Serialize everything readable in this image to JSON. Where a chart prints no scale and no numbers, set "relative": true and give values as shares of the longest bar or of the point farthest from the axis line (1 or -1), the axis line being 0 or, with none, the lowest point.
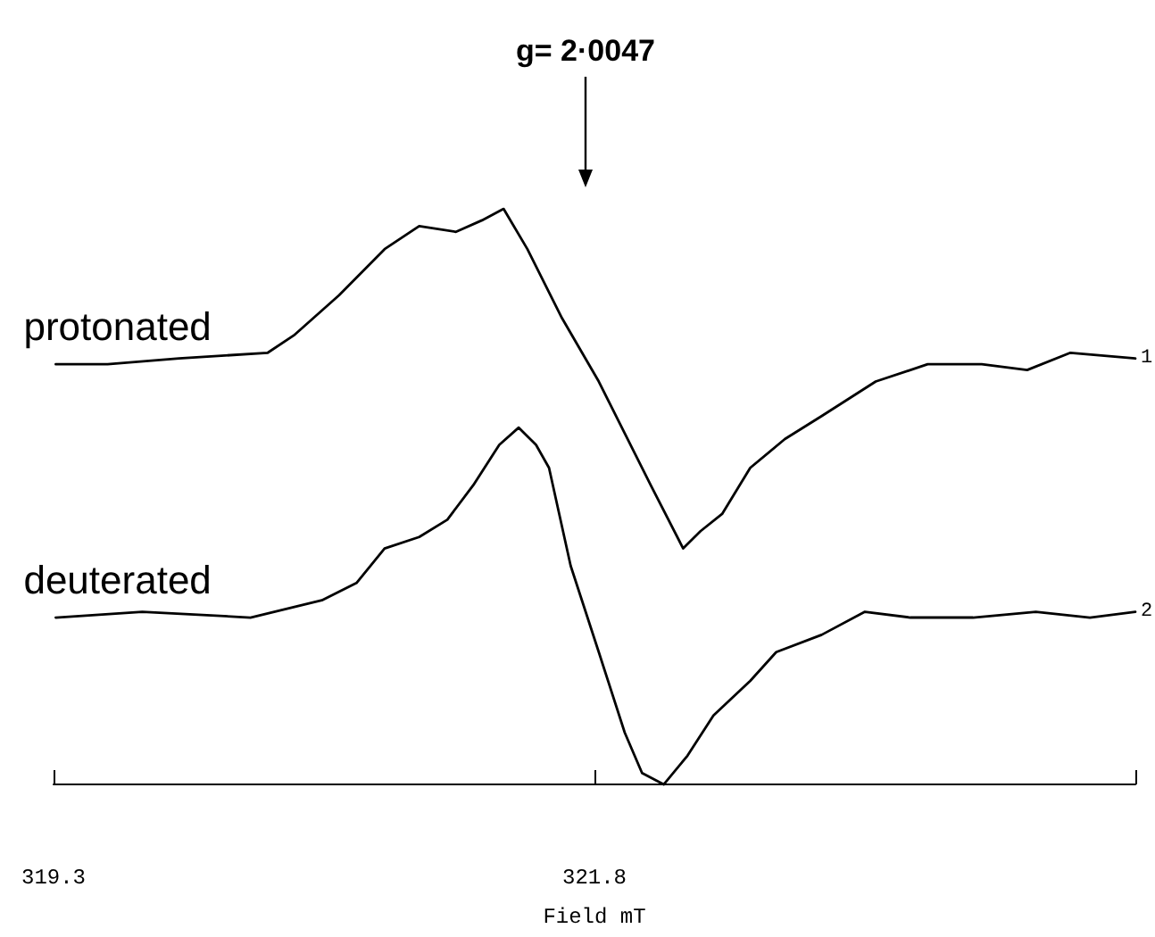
{
  "chart_data": {
    "type": "line",
    "relative": true,
    "xlabel": "Field mT",
    "xlim": [
      319.3,
      324.3
    ],
    "xticks": [
      319.3,
      321.8,
      {
        "value": 324.3,
        "label": null
      }
    ],
    "grid": false,
    "legend": false,
    "marker": "none",
    "line_style": "solid",
    "annotations": [
      "g= 2·0047",
      "1",
      "2"
    ],
    "series": [
      {
        "name": "protonated",
        "color": "#000000",
        "x": [
          319.31,
          319.55,
          319.88,
          320.29,
          320.41,
          320.62,
          320.83,
          320.99,
          321.16,
          321.28,
          321.38,
          321.49,
          321.65,
          321.82,
          321.94,
          322.06,
          322.21,
          322.29,
          322.39,
          322.52,
          322.68,
          322.85,
          323.1,
          323.34,
          323.59,
          323.8,
          324.0,
          324.3
        ],
        "values": [
          0.73,
          0.73,
          0.74,
          0.75,
          0.78,
          0.85,
          0.93,
          0.97,
          0.96,
          0.98,
          1.0,
          0.93,
          0.81,
          0.7,
          0.61,
          0.52,
          0.41,
          0.44,
          0.47,
          0.55,
          0.6,
          0.64,
          0.7,
          0.73,
          0.73,
          0.72,
          0.75,
          0.74
        ]
      },
      {
        "name": "deuterated",
        "color": "#000000",
        "x": [
          319.31,
          319.71,
          320.21,
          320.54,
          320.7,
          320.83,
          320.99,
          321.12,
          321.24,
          321.36,
          321.45,
          321.53,
          321.59,
          321.69,
          321.82,
          321.94,
          322.02,
          322.12,
          322.23,
          322.35,
          322.52,
          322.64,
          322.85,
          323.05,
          323.26,
          323.55,
          323.84,
          324.09,
          324.3
        ],
        "values": [
          0.29,
          0.3,
          0.29,
          0.32,
          0.35,
          0.41,
          0.43,
          0.46,
          0.52,
          0.59,
          0.62,
          0.59,
          0.55,
          0.38,
          0.23,
          0.09,
          0.02,
          0.0,
          0.05,
          0.12,
          0.18,
          0.23,
          0.26,
          0.3,
          0.29,
          0.29,
          0.3,
          0.29,
          0.3
        ]
      }
    ]
  }
}
